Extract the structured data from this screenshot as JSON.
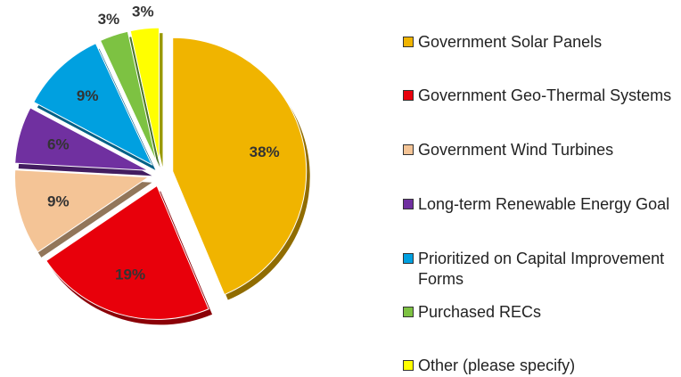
{
  "chart_data": {
    "type": "pie",
    "categories": [
      "Government Solar Panels",
      "Government Geo-Thermal Systems",
      "Government Wind Turbines",
      "Long-term Renewable Energy Goal",
      "Prioritized on Capital Improvement Forms",
      "Purchased RECs",
      "Other (please specify)"
    ],
    "values": [
      38,
      19,
      9,
      6,
      9,
      3,
      3
    ],
    "value_labels": [
      "38%",
      "19%",
      "9%",
      "6%",
      "9%",
      "3%",
      "3%"
    ],
    "colors": [
      "#f0b400",
      "#e8000b",
      "#f4c496",
      "#7030a0",
      "#00a0e0",
      "#7dc242",
      "#ffff00"
    ],
    "legend": "right"
  }
}
